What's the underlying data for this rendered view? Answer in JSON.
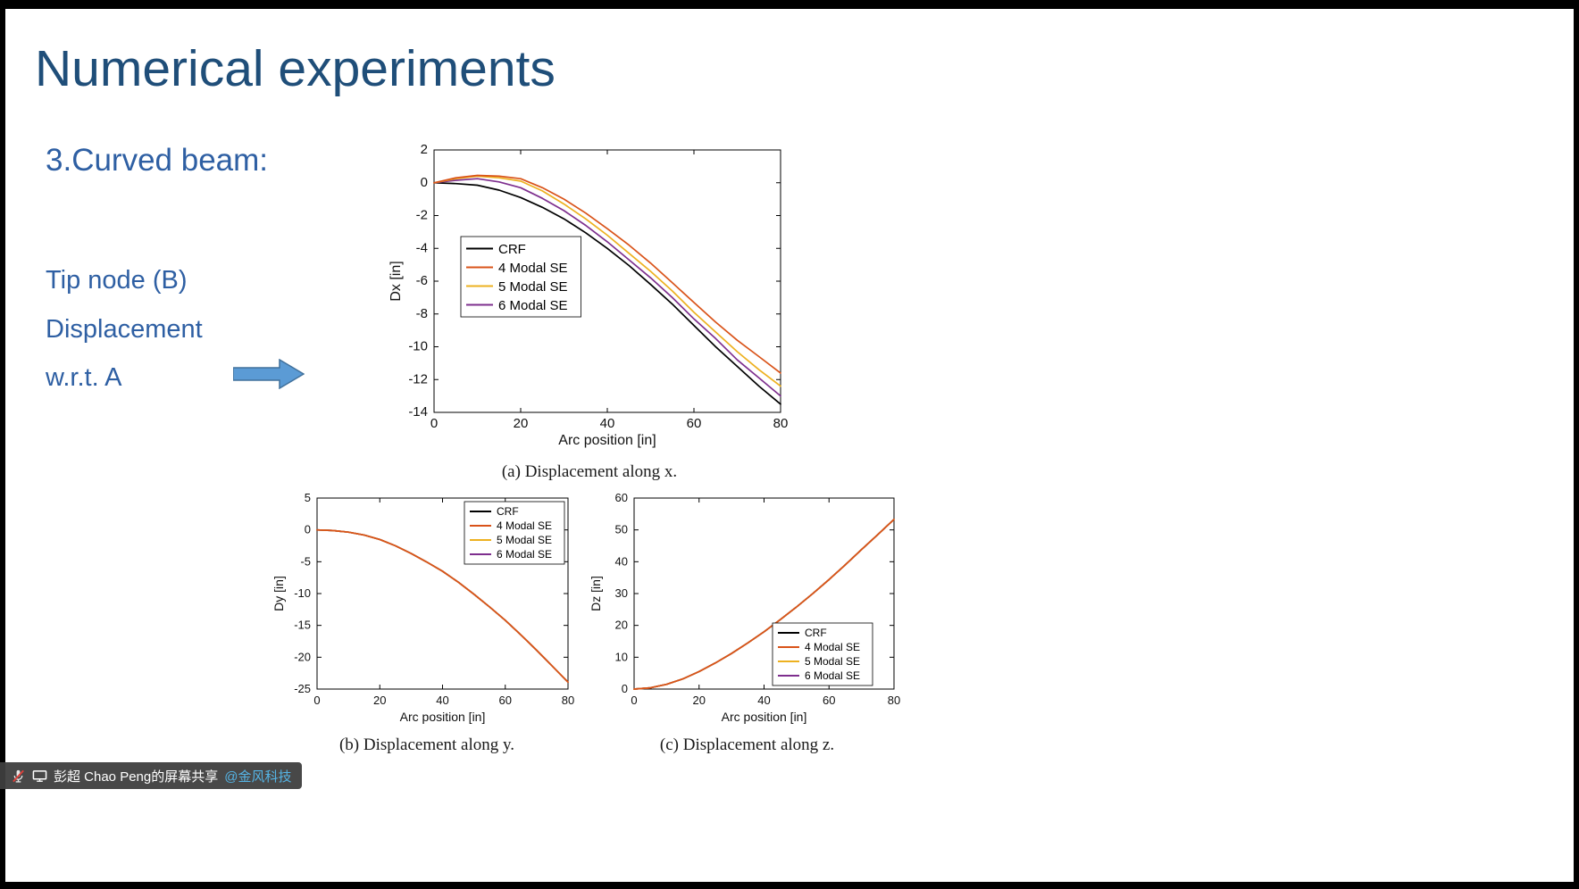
{
  "slide": {
    "title": "Numerical experiments",
    "section_heading": "3.Curved beam:",
    "note_lines": [
      "Tip node (B)",
      "Displacement",
      "w.r.t. A"
    ]
  },
  "share_banner": {
    "presenter_text": "彭超 Chao Peng的屏幕共享",
    "org_link": "@金风科技"
  },
  "colors": {
    "title_blue": "#1F4E79",
    "body_blue": "#2E5FA3",
    "arrow_fill": "#5B9BD5",
    "arrow_stroke": "#41719C",
    "series_crf": "#000000",
    "series_4modal": "#D95319",
    "series_5modal": "#EDB120",
    "series_6modal": "#7E2F8E",
    "banner_bg": "#3E3E3E",
    "banner_link": "#55B4E5"
  },
  "chart_data": [
    {
      "type": "line",
      "caption": "(a) Displacement along x.",
      "xlabel": "Arc position [in]",
      "ylabel": "Dx [in]",
      "xlim": [
        0,
        80
      ],
      "ylim": [
        -14,
        2
      ],
      "xticks": [
        0,
        20,
        40,
        60,
        80
      ],
      "yticks": [
        2,
        0,
        -2,
        -4,
        -6,
        -8,
        -10,
        -12,
        -14
      ],
      "grid": false,
      "legend_position": "left-center",
      "draw_order": [
        0,
        3,
        2,
        1
      ],
      "x": [
        0,
        5,
        10,
        15,
        20,
        25,
        30,
        35,
        40,
        45,
        50,
        55,
        60,
        65,
        70,
        75,
        80
      ],
      "series": [
        {
          "name": "CRF",
          "color": "#000000",
          "values": [
            0,
            -0.05,
            -0.15,
            -0.45,
            -0.9,
            -1.5,
            -2.2,
            -3.05,
            -4.0,
            -5.05,
            -6.2,
            -7.4,
            -8.7,
            -10.0,
            -11.2,
            -12.4,
            -13.5
          ]
        },
        {
          "name": "4 Modal SE",
          "color": "#D95319",
          "values": [
            0,
            0.3,
            0.45,
            0.4,
            0.25,
            -0.3,
            -1.0,
            -1.85,
            -2.8,
            -3.8,
            -4.9,
            -6.1,
            -7.3,
            -8.5,
            -9.6,
            -10.6,
            -11.6
          ]
        },
        {
          "name": "5 Modal SE",
          "color": "#EDB120",
          "values": [
            0,
            0.25,
            0.4,
            0.3,
            0.1,
            -0.5,
            -1.3,
            -2.2,
            -3.2,
            -4.3,
            -5.4,
            -6.6,
            -7.9,
            -9.1,
            -10.3,
            -11.4,
            -12.4
          ]
        },
        {
          "name": "6 Modal SE",
          "color": "#7E2F8E",
          "values": [
            0,
            0.15,
            0.25,
            0.05,
            -0.3,
            -0.95,
            -1.7,
            -2.6,
            -3.6,
            -4.7,
            -5.8,
            -7.0,
            -8.3,
            -9.5,
            -10.8,
            -11.9,
            -13.0
          ]
        }
      ]
    },
    {
      "type": "line",
      "caption": "(b) Displacement along y.",
      "xlabel": "Arc position [in]",
      "ylabel": "Dy [in]",
      "xlim": [
        0,
        80
      ],
      "ylim": [
        -25,
        5
      ],
      "xticks": [
        0,
        20,
        40,
        60,
        80
      ],
      "yticks": [
        5,
        0,
        -5,
        -10,
        -15,
        -20,
        -25
      ],
      "grid": false,
      "legend_position": "top-right",
      "draw_order": [
        0,
        3,
        2,
        1
      ],
      "x": [
        0,
        5,
        10,
        15,
        20,
        25,
        30,
        35,
        40,
        45,
        50,
        55,
        60,
        65,
        70,
        75,
        80
      ],
      "series": [
        {
          "name": "CRF",
          "color": "#000000",
          "values": [
            0,
            -0.1,
            -0.35,
            -0.8,
            -1.5,
            -2.5,
            -3.7,
            -5.05,
            -6.5,
            -8.2,
            -10.1,
            -12.1,
            -14.2,
            -16.5,
            -18.9,
            -21.4,
            -23.9
          ]
        },
        {
          "name": "4 Modal SE",
          "color": "#D95319",
          "values": [
            0,
            -0.1,
            -0.35,
            -0.8,
            -1.5,
            -2.5,
            -3.7,
            -5.05,
            -6.5,
            -8.2,
            -10.1,
            -12.1,
            -14.2,
            -16.5,
            -18.9,
            -21.4,
            -23.9
          ]
        },
        {
          "name": "5 Modal SE",
          "color": "#EDB120",
          "values": [
            0,
            -0.1,
            -0.35,
            -0.8,
            -1.5,
            -2.5,
            -3.7,
            -5.05,
            -6.5,
            -8.2,
            -10.1,
            -12.1,
            -14.2,
            -16.5,
            -18.9,
            -21.4,
            -23.9
          ]
        },
        {
          "name": "6 Modal SE",
          "color": "#7E2F8E",
          "values": [
            0,
            -0.1,
            -0.35,
            -0.8,
            -1.5,
            -2.5,
            -3.7,
            -5.05,
            -6.5,
            -8.2,
            -10.1,
            -12.1,
            -14.2,
            -16.5,
            -18.9,
            -21.4,
            -23.9
          ]
        }
      ]
    },
    {
      "type": "line",
      "caption": "(c) Displacement along z.",
      "xlabel": "Arc position [in]",
      "ylabel": "Dz [in]",
      "xlim": [
        0,
        80
      ],
      "ylim": [
        0,
        60
      ],
      "xticks": [
        0,
        20,
        40,
        60,
        80
      ],
      "yticks": [
        0,
        10,
        20,
        30,
        40,
        50,
        60
      ],
      "grid": false,
      "legend_position": "bottom-right",
      "draw_order": [
        0,
        3,
        2,
        1
      ],
      "x": [
        0,
        5,
        10,
        15,
        20,
        25,
        30,
        35,
        40,
        45,
        50,
        55,
        60,
        65,
        70,
        75,
        80
      ],
      "series": [
        {
          "name": "CRF",
          "color": "#000000",
          "values": [
            0,
            0.4,
            1.5,
            3.2,
            5.5,
            8.2,
            11.2,
            14.5,
            18.0,
            21.8,
            25.8,
            30.0,
            34.4,
            39.0,
            43.8,
            48.5,
            53.3
          ]
        },
        {
          "name": "4 Modal SE",
          "color": "#D95319",
          "values": [
            0,
            0.4,
            1.5,
            3.2,
            5.5,
            8.2,
            11.2,
            14.5,
            18.0,
            21.8,
            25.8,
            30.0,
            34.4,
            39.0,
            43.8,
            48.5,
            53.3
          ]
        },
        {
          "name": "5 Modal SE",
          "color": "#EDB120",
          "values": [
            0,
            0.4,
            1.5,
            3.2,
            5.5,
            8.2,
            11.2,
            14.5,
            18.0,
            21.8,
            25.8,
            30.0,
            34.4,
            39.0,
            43.8,
            48.5,
            53.3
          ]
        },
        {
          "name": "6 Modal SE",
          "color": "#7E2F8E",
          "values": [
            0,
            0.4,
            1.5,
            3.2,
            5.5,
            8.2,
            11.2,
            14.5,
            18.0,
            21.8,
            25.8,
            30.0,
            34.4,
            39.0,
            43.8,
            48.5,
            53.3
          ]
        }
      ]
    }
  ]
}
